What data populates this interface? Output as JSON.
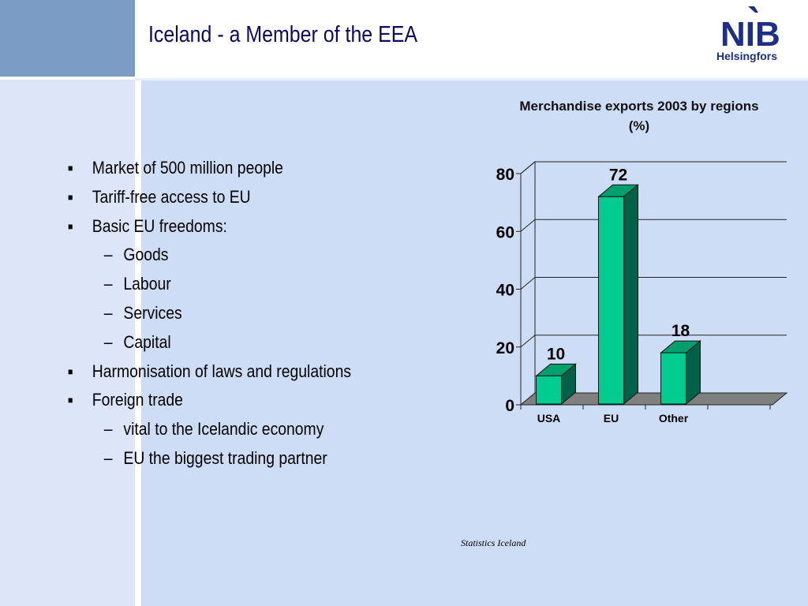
{
  "header": {
    "title": "Iceland - a Member of the EEA",
    "logo_text": "NIB",
    "logo_subtitle": "Helsingfors"
  },
  "bullets": [
    {
      "level": 1,
      "text": "Market of 500 million people"
    },
    {
      "level": 1,
      "text": "Tariff-free access to EU"
    },
    {
      "level": 1,
      "text": "Basic EU freedoms:"
    },
    {
      "level": 2,
      "text": "Goods"
    },
    {
      "level": 2,
      "text": "Labour"
    },
    {
      "level": 2,
      "text": "Services"
    },
    {
      "level": 2,
      "text": "Capital"
    },
    {
      "level": 1,
      "text": "Harmonisation of laws and regulations"
    },
    {
      "level": 1,
      "text": "Foreign trade"
    },
    {
      "level": 2,
      "text": "vital to the Icelandic  economy"
    },
    {
      "level": 2,
      "text": "EU the biggest trading partner"
    }
  ],
  "markers": {
    "level1": "■",
    "level2": "–"
  },
  "source": "Statistics Iceland",
  "colors": {
    "title": "#0a0a60",
    "bar_front": "#00cc8f",
    "bar_top": "#00a06e",
    "bar_side": "#006048",
    "floor": "#808080",
    "panel": "#cdddf6"
  },
  "chart_data": {
    "type": "bar",
    "title": "Merchandise exports 2003 by regions (%)",
    "categories": [
      "USA",
      "EU",
      "Other"
    ],
    "values": [
      10,
      72,
      18
    ],
    "data_labels": [
      "10",
      "72",
      "18"
    ],
    "yticks": [
      0,
      20,
      40,
      60,
      80
    ],
    "ylim": [
      0,
      80
    ],
    "grid": true,
    "three_d": true,
    "legend": "none"
  }
}
